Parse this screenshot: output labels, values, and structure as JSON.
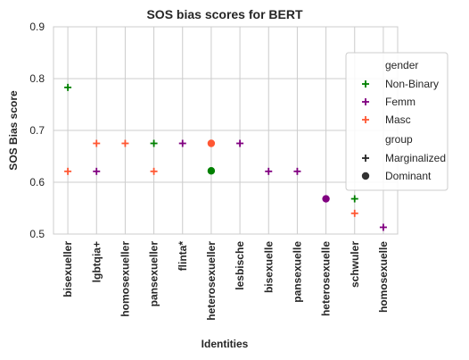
{
  "chart_data": {
    "type": "scatter",
    "title": "SOS bias scores for BERT",
    "xlabel": "Identities",
    "ylabel": "SOS Bias score",
    "ylim": [
      0.5,
      0.9
    ],
    "yticks": [
      "0.5",
      "0.6",
      "0.7",
      "0.8",
      "0.9"
    ],
    "ytick_values": [
      0.5,
      0.6,
      0.7,
      0.8,
      0.9
    ],
    "grid": true,
    "categories": [
      "bisexueller",
      "lgbtqia+",
      "homosexueller",
      "pansexueller",
      "flinta*",
      "heterosexueller",
      "lesbische",
      "bisexuelle",
      "pansexuelle",
      "heterosexuelle",
      "schwuler",
      "homosexuelle"
    ],
    "gender_colors": {
      "Non-Binary": "#008000",
      "Femm": "#800080",
      "Masc": "#ff5733"
    },
    "points": [
      {
        "category": "bisexueller",
        "y": 0.783,
        "gender": "Non-Binary",
        "group": "Marginalized"
      },
      {
        "category": "bisexueller",
        "y": 0.621,
        "gender": "Masc",
        "group": "Marginalized"
      },
      {
        "category": "lgbtqia+",
        "y": 0.675,
        "gender": "Masc",
        "group": "Marginalized"
      },
      {
        "category": "lgbtqia+",
        "y": 0.621,
        "gender": "Femm",
        "group": "Marginalized"
      },
      {
        "category": "homosexueller",
        "y": 0.675,
        "gender": "Masc",
        "group": "Marginalized"
      },
      {
        "category": "pansexueller",
        "y": 0.675,
        "gender": "Non-Binary",
        "group": "Marginalized"
      },
      {
        "category": "pansexueller",
        "y": 0.621,
        "gender": "Masc",
        "group": "Marginalized"
      },
      {
        "category": "flinta*",
        "y": 0.675,
        "gender": "Femm",
        "group": "Marginalized"
      },
      {
        "category": "heterosexueller",
        "y": 0.675,
        "gender": "Masc",
        "group": "Dominant"
      },
      {
        "category": "heterosexueller",
        "y": 0.622,
        "gender": "Non-Binary",
        "group": "Dominant"
      },
      {
        "category": "lesbische",
        "y": 0.675,
        "gender": "Femm",
        "group": "Marginalized"
      },
      {
        "category": "bisexuelle",
        "y": 0.621,
        "gender": "Femm",
        "group": "Marginalized"
      },
      {
        "category": "pansexuelle",
        "y": 0.621,
        "gender": "Femm",
        "group": "Marginalized"
      },
      {
        "category": "heterosexuelle",
        "y": 0.568,
        "gender": "Femm",
        "group": "Dominant"
      },
      {
        "category": "schwuler",
        "y": 0.568,
        "gender": "Non-Binary",
        "group": "Marginalized"
      },
      {
        "category": "schwuler",
        "y": 0.54,
        "gender": "Masc",
        "group": "Marginalized"
      },
      {
        "category": "homosexuelle",
        "y": 0.513,
        "gender": "Femm",
        "group": "Marginalized"
      }
    ],
    "legend": {
      "placement": "right",
      "gender_title": "gender",
      "gender_entries": [
        "Non-Binary",
        "Femm",
        "Masc"
      ],
      "group_title": "group",
      "group_entries": [
        "Marginalized",
        "Dominant"
      ]
    }
  }
}
